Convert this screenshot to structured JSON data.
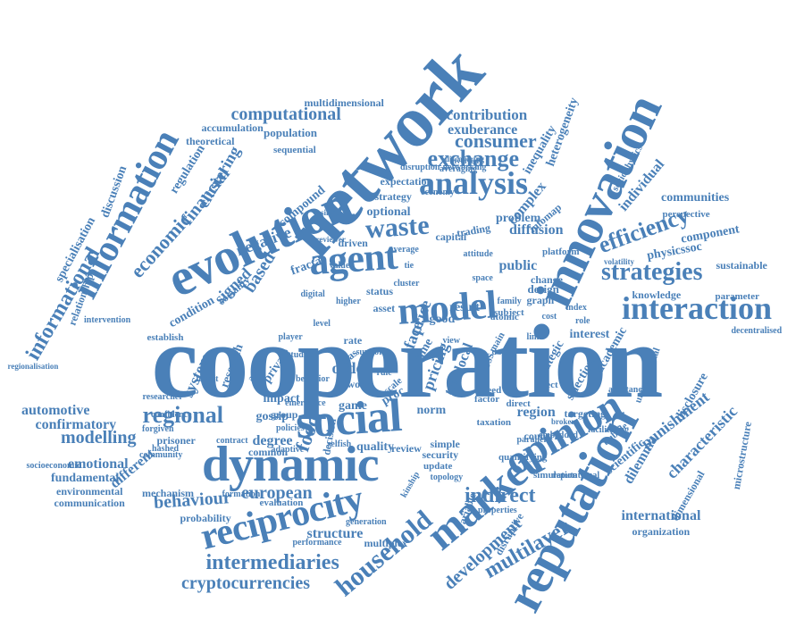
{
  "colors": {
    "word": "#4a80b8",
    "background": "#ffffff"
  },
  "words": [
    "cooperation",
    "network",
    "evolution",
    "innovation",
    "reputation",
    "dynamic",
    "social",
    "market",
    "opinion",
    "reciprocity",
    "agent",
    "model",
    "information",
    "analysis",
    "interaction",
    "strategies",
    "household",
    "exchange",
    "waste",
    "efficiency",
    "intermediaries",
    "cryptocurrencies",
    "multilayer",
    "development",
    "regional",
    "computational",
    "consumer",
    "contribution",
    "exuberance",
    "informational",
    "economic",
    "financial",
    "based",
    "indirect",
    "european",
    "behaviour",
    "punishment",
    "characteristic",
    "international",
    "organization",
    "modelling",
    "confirmatory",
    "automotive",
    "emotional",
    "fundamental",
    "environmental",
    "communication",
    "probability",
    "structure",
    "multiplex",
    "performance",
    "order",
    "food",
    "price",
    "pricing",
    "face",
    "public",
    "diffusion",
    "optional",
    "strategy",
    "expectation",
    "communities",
    "component",
    "physicssoc",
    "sustainable",
    "knowledge",
    "parameter",
    "individual",
    "perspective",
    "heterogeneity",
    "inequality",
    "complex",
    "trading",
    "infomap",
    "platform",
    "dilemma",
    "scientific",
    "selection",
    "academic",
    "region",
    "disclosure",
    "microstructure",
    "dimensional",
    "targeting",
    "interest",
    "strategic",
    "system",
    "research",
    "private",
    "impact",
    "degree",
    "common",
    "contract",
    "evaluation",
    "mechanism",
    "formation",
    "different",
    "gossip",
    "signed",
    "fractal",
    "negative",
    "condition",
    "sociality",
    "compound",
    "clustering",
    "discussion",
    "specialisation",
    "relationship",
    "regulation",
    "population",
    "accumulation",
    "theoretical",
    "sequential",
    "multidimensional",
    "local",
    "cross",
    "norm",
    "trade",
    "time",
    "good",
    "result",
    "problem",
    "design",
    "graph",
    "change",
    "status",
    "asset",
    "capital",
    "driven",
    "quality",
    "review",
    "simple",
    "security",
    "update",
    "topology",
    "kinship",
    "game",
    "proc",
    "group",
    "prisoner",
    "forgiven",
    "hashed",
    "establish",
    "regionalisation",
    "socioeconomic",
    "adaptive",
    "policies",
    "decision",
    "selfish",
    "work",
    "speed",
    "factor",
    "rate",
    "bias",
    "scale",
    "simulation",
    "generation",
    "properties",
    "disruptive",
    "variable",
    "countrie",
    "parallel",
    "subject",
    "family",
    "sociophysics",
    "decentralised",
    "unconditional",
    "assistance",
    "bubble",
    "economy",
    "disruption",
    "networking",
    "discovering",
    "reviewer",
    "volatility",
    "broker",
    "higher",
    "activities",
    "researcher",
    "confidence",
    "community",
    "intervention",
    "atomic",
    "main",
    "direct",
    "taxation",
    "effect",
    "quantifying",
    "facilitating",
    "reputational",
    "embedded",
    "involved",
    "averaging",
    "single",
    "value",
    "digital",
    "cluster",
    "average",
    "space",
    "attitude",
    "behavior",
    "invest",
    "player",
    "studies",
    "emergence",
    "level",
    "support",
    "rule",
    "link",
    "index",
    "role",
    "cost",
    "view",
    "data",
    "tie"
  ]
}
